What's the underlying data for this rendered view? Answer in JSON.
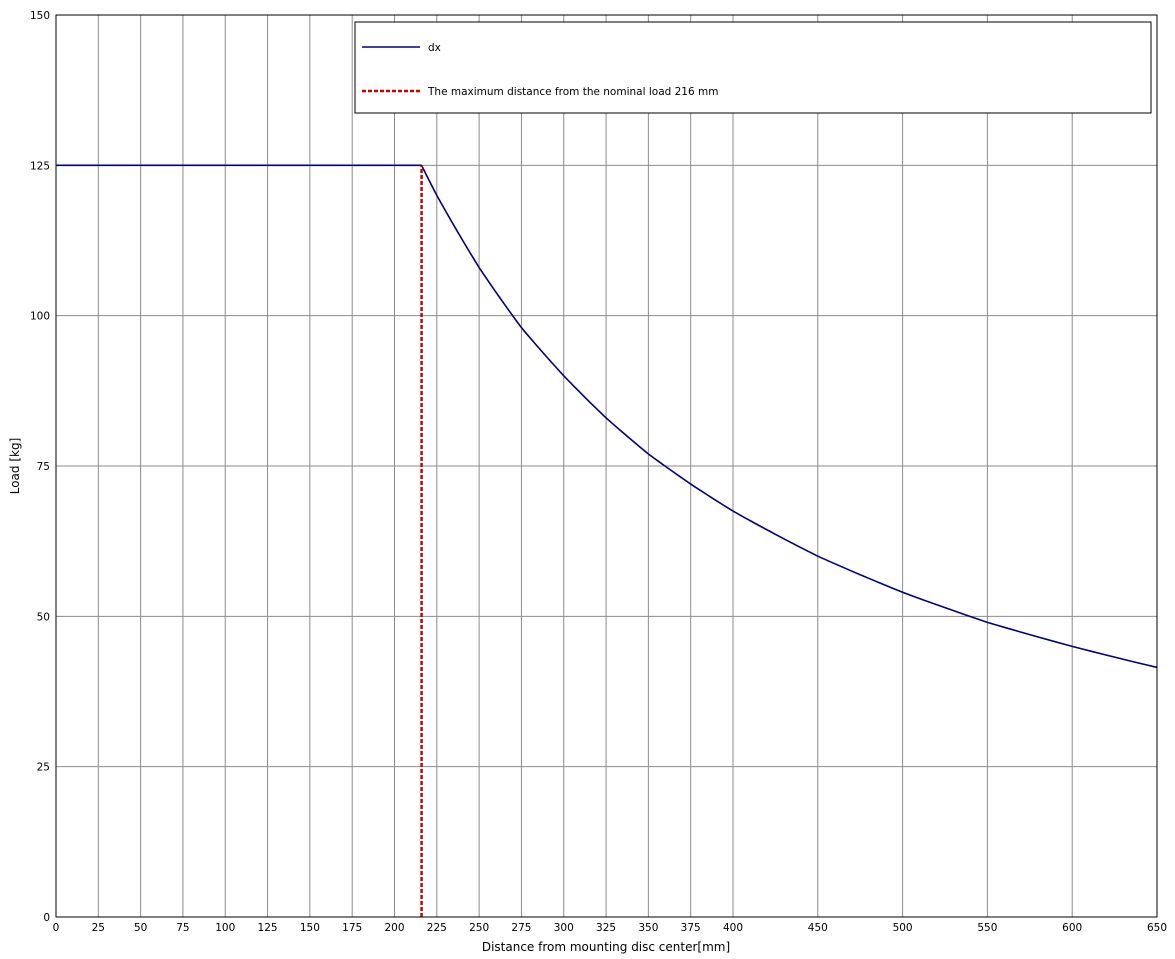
{
  "chart_data": {
    "type": "line",
    "xlabel": "Distance from mounting disc center[mm]",
    "ylabel": "Load [kg]",
    "xlim": [
      0,
      650
    ],
    "ylim": [
      0,
      150
    ],
    "x_ticks": [
      0,
      25,
      50,
      75,
      100,
      125,
      150,
      175,
      200,
      225,
      250,
      275,
      300,
      325,
      350,
      375,
      400,
      450,
      500,
      550,
      600,
      650
    ],
    "y_ticks": [
      0,
      25,
      50,
      75,
      100,
      125,
      150
    ],
    "grid": true,
    "legend_position": "top-right",
    "series": [
      {
        "name": "dx",
        "color": "#000080",
        "style": "solid",
        "x": [
          0,
          216,
          225,
          250,
          275,
          300,
          325,
          350,
          375,
          400,
          450,
          500,
          550,
          600,
          650
        ],
        "y": [
          125,
          125,
          120,
          108,
          98,
          90,
          83,
          77,
          72,
          67.5,
          60,
          54,
          49,
          45,
          41.5
        ]
      },
      {
        "name": "The maximum distance from the nominal load 216 mm",
        "color": "#cc0000",
        "style": "dashed",
        "x": [
          216,
          216
        ],
        "y": [
          0,
          125
        ]
      }
    ]
  }
}
